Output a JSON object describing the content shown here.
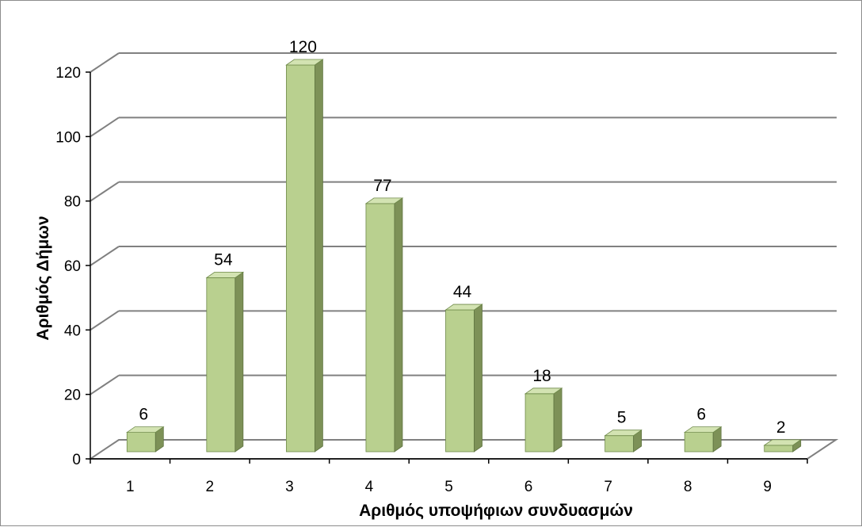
{
  "chart_data": {
    "type": "bar",
    "title": "",
    "xlabel": "Αριθμός υποψήφιων συνδυασμών",
    "ylabel": "Αριθμός Δήμων",
    "categories": [
      "1",
      "2",
      "3",
      "4",
      "5",
      "6",
      "7",
      "8",
      "9"
    ],
    "values": [
      6,
      54,
      120,
      77,
      44,
      18,
      5,
      6,
      2
    ],
    "ylim": [
      0,
      120
    ],
    "yticks": [
      "0",
      "20",
      "40",
      "60",
      "80",
      "100",
      "120"
    ],
    "grid": true,
    "legend": "none",
    "style": "3d-column",
    "colors": {
      "bar_front": "#b9d08f",
      "bar_side": "#7d9157",
      "bar_top": "#d3e3b2",
      "grid": "#808080"
    }
  }
}
